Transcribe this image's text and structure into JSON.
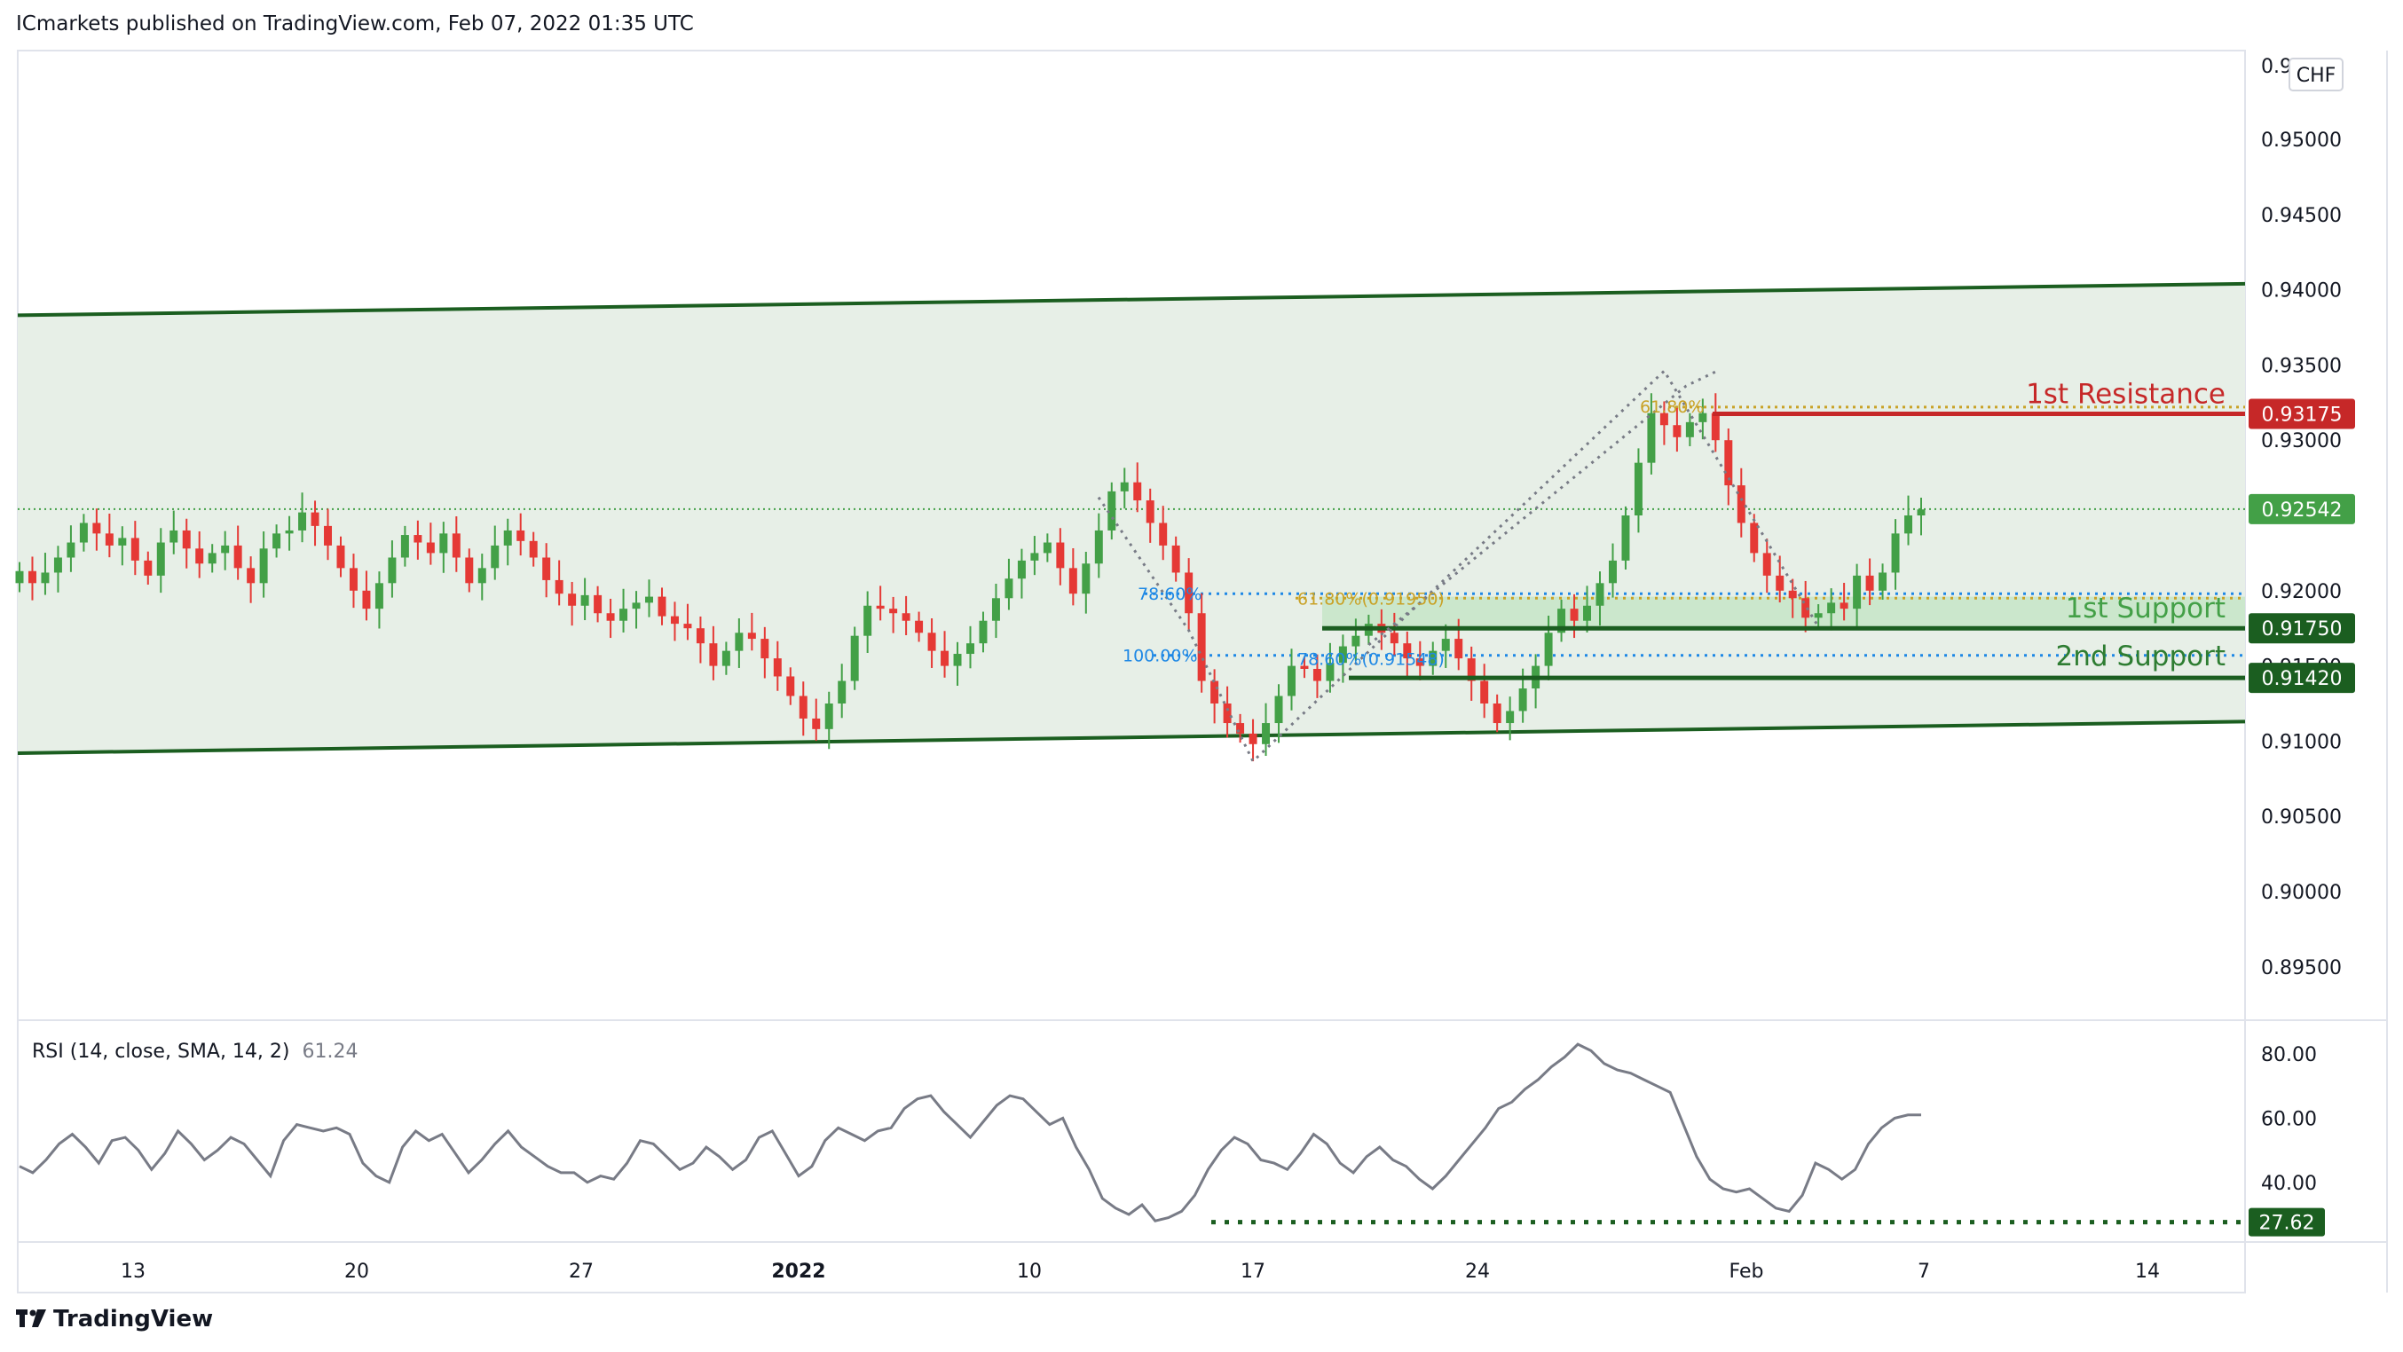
{
  "header": {
    "publisher_line": "ICmarkets published on TradingView.com, Feb 07, 2022 01:35 UTC"
  },
  "footer": {
    "brand": "TradingView"
  },
  "currency_badge": "CHF",
  "price_axis": {
    "ticks": [
      "0.95000",
      "0.94500",
      "0.94000",
      "0.93500",
      "0.93000",
      "0.92000",
      "0.91000",
      "0.90500",
      "0.90000",
      "0.89500"
    ],
    "top_partial": "0.95500",
    "hidden_under_tag": "0.91500"
  },
  "time_axis": {
    "ticks": [
      {
        "label": "13",
        "bold": false
      },
      {
        "label": "20",
        "bold": false
      },
      {
        "label": "27",
        "bold": false
      },
      {
        "label": "2022",
        "bold": true
      },
      {
        "label": "10",
        "bold": false
      },
      {
        "label": "17",
        "bold": false
      },
      {
        "label": "24",
        "bold": false
      },
      {
        "label": "Feb",
        "bold": false
      },
      {
        "label": "7",
        "bold": false
      },
      {
        "label": "14",
        "bold": false
      }
    ]
  },
  "price_tags": [
    {
      "label": "0.93175",
      "value": 0.93175,
      "color": "#c62828",
      "role": "resistance"
    },
    {
      "label": "0.92542",
      "value": 0.92542,
      "color": "#43a047",
      "role": "last-price"
    },
    {
      "label": "0.91750",
      "value": 0.9175,
      "color": "#1b5e20",
      "role": "first-support"
    },
    {
      "label": "0.91420",
      "value": 0.9142,
      "color": "#1b5e20",
      "role": "second-support"
    }
  ],
  "annotations": {
    "resistance_label": "1st Resistance",
    "support1_label": "1st Support",
    "support2_label": "2nd Support",
    "fib_78": "78.60%",
    "fib_100": "100.00%",
    "fib_618_a": "61.80%(0.91950)",
    "fib_618_b": "61.80%",
    "fib_786_b": "78.60%(0.91548)"
  },
  "rsi": {
    "title": "RSI (14, close, SMA, 14, 2)",
    "value_text": "61.24",
    "ticks": [
      "80.00",
      "60.00",
      "40.00"
    ],
    "level_tag": "27.62",
    "level": 27.62
  },
  "colors": {
    "bull": "#43a047",
    "bear": "#e53935",
    "channel_line": "#1b5e20",
    "channel_fill": "#e7efe7",
    "resistance": "#c62828",
    "support_fill": "#c8e6c9",
    "fib_blue": "#1e88e5",
    "fib_gold": "#c9a227",
    "rsi_line": "#787b86"
  },
  "chart_data": {
    "type": "candlestick",
    "symbol_quote_currency": "CHF",
    "y_range": [
      0.89,
      0.956
    ],
    "dates": [
      "13",
      "20",
      "27",
      "2022",
      "10",
      "17",
      "24",
      "Feb",
      "7",
      "14"
    ],
    "levels": {
      "first_resistance": 0.93175,
      "first_support": 0.9175,
      "second_support": 0.9142,
      "last_price": 0.92542
    },
    "channel": {
      "upper": [
        [
          0,
          0.9383
        ],
        [
          1.0,
          0.9404
        ]
      ],
      "lower": [
        [
          0,
          0.9092
        ],
        [
          1.0,
          0.9113
        ]
      ]
    },
    "fibonacci": [
      {
        "label": "78.60%",
        "price": 0.9198
      },
      {
        "label": "100.00%",
        "price": 0.9157
      },
      {
        "label": "61.80%(0.91950)",
        "price": 0.9195
      },
      {
        "label": "78.60%(0.91548)",
        "price": 0.91548
      },
      {
        "label": "61.80%",
        "price": 0.9322
      }
    ],
    "close": [
      0.9213,
      0.9205,
      0.9212,
      0.9222,
      0.9232,
      0.9245,
      0.9238,
      0.923,
      0.9235,
      0.922,
      0.921,
      0.9232,
      0.924,
      0.9228,
      0.9218,
      0.9225,
      0.923,
      0.9215,
      0.9205,
      0.9228,
      0.9238,
      0.924,
      0.9252,
      0.9243,
      0.923,
      0.9215,
      0.92,
      0.9188,
      0.9205,
      0.9222,
      0.9237,
      0.9232,
      0.9225,
      0.9238,
      0.9222,
      0.9205,
      0.9215,
      0.923,
      0.924,
      0.9233,
      0.9222,
      0.9207,
      0.9198,
      0.919,
      0.9197,
      0.9185,
      0.918,
      0.9188,
      0.9192,
      0.9196,
      0.9183,
      0.9178,
      0.9175,
      0.9165,
      0.915,
      0.916,
      0.9172,
      0.9168,
      0.9155,
      0.9143,
      0.913,
      0.9115,
      0.9108,
      0.9125,
      0.914,
      0.917,
      0.919,
      0.9188,
      0.9185,
      0.918,
      0.9172,
      0.916,
      0.915,
      0.9158,
      0.9165,
      0.918,
      0.9195,
      0.9208,
      0.922,
      0.9225,
      0.9232,
      0.9215,
      0.9198,
      0.9218,
      0.924,
      0.9266,
      0.9272,
      0.926,
      0.9245,
      0.923,
      0.9212,
      0.9185,
      0.914,
      0.9125,
      0.9112,
      0.9105,
      0.9098,
      0.9112,
      0.913,
      0.915,
      0.9148,
      0.914,
      0.9152,
      0.9163,
      0.917,
      0.9178,
      0.9172,
      0.9165,
      0.9155,
      0.915,
      0.916,
      0.9168,
      0.9155,
      0.914,
      0.9125,
      0.9112,
      0.912,
      0.9135,
      0.915,
      0.9172,
      0.9188,
      0.918,
      0.919,
      0.9205,
      0.922,
      0.925,
      0.9285,
      0.9318,
      0.931,
      0.9302,
      0.9312,
      0.9318,
      0.93,
      0.927,
      0.9245,
      0.9225,
      0.921,
      0.92,
      0.9195,
      0.9182,
      0.9185,
      0.9192,
      0.9188,
      0.921,
      0.92,
      0.9212,
      0.9238,
      0.925,
      0.9254
    ],
    "rsi_values": [
      45,
      43,
      47,
      52,
      55,
      51,
      46,
      53,
      54,
      50,
      44,
      49,
      56,
      52,
      47,
      50,
      54,
      52,
      47,
      42,
      53,
      58,
      57,
      56,
      57,
      55,
      46,
      42,
      40,
      51,
      56,
      53,
      55,
      49,
      43,
      47,
      52,
      56,
      51,
      48,
      45,
      43,
      43,
      40,
      42,
      41,
      46,
      53,
      52,
      48,
      44,
      46,
      51,
      48,
      44,
      47,
      54,
      56,
      49,
      42,
      45,
      53,
      57,
      55,
      53,
      56,
      57,
      63,
      66,
      67,
      62,
      58,
      54,
      59,
      64,
      67,
      66,
      62,
      58,
      60,
      51,
      44,
      35,
      32,
      30,
      33,
      28,
      29,
      31,
      36,
      44,
      50,
      54,
      52,
      47,
      46,
      44,
      49,
      55,
      52,
      46,
      43,
      48,
      51,
      47,
      45,
      41,
      38,
      42,
      47,
      52,
      57,
      63,
      65,
      69,
      72,
      76,
      79,
      83,
      81,
      77,
      75,
      74,
      72,
      70,
      68,
      58,
      48,
      41,
      38,
      37,
      38,
      35,
      32,
      31,
      36,
      46,
      44,
      41,
      44,
      52,
      57,
      60,
      61,
      61
    ]
  }
}
